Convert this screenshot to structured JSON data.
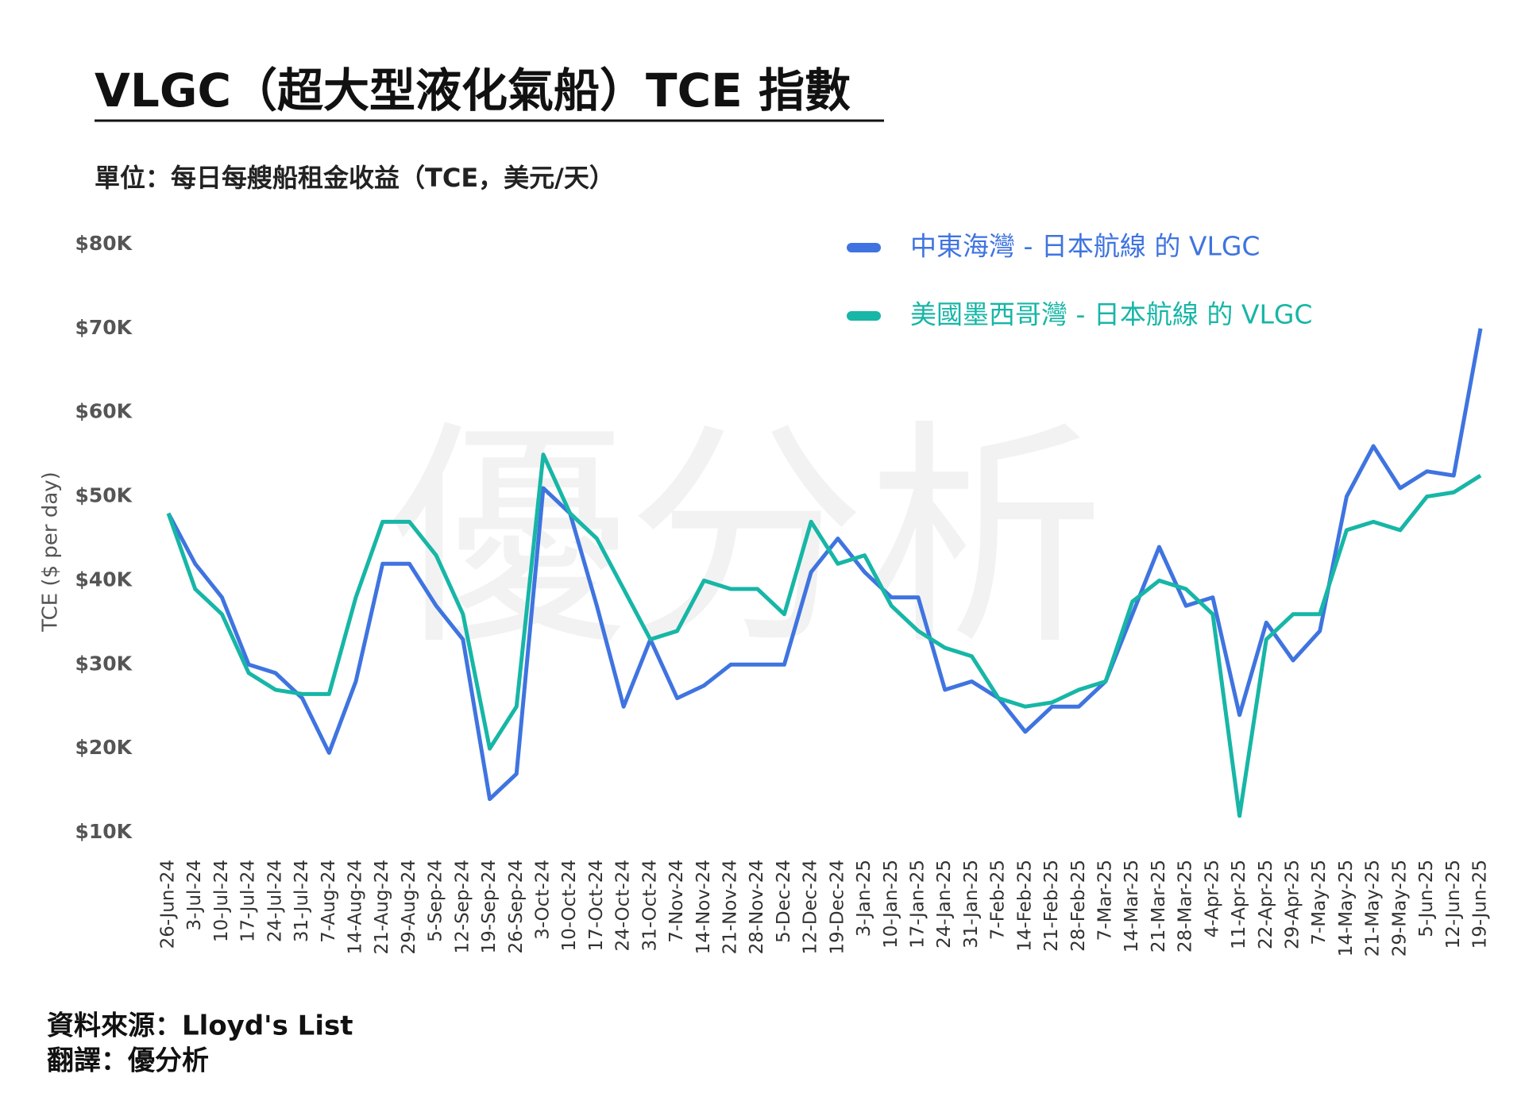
{
  "chart_data": {
    "type": "line",
    "title": "VLGC（超大型液化氣船）TCE 指數",
    "subtitle": "單位：每日每艘船租金收益（TCE，美元/天）",
    "y_label": "TCE ($ per day)",
    "watermark": "優分析",
    "notes": [
      "資料來源：Lloyd's List",
      "翻譯：優分析"
    ],
    "categories": [
      "26-Jun-24",
      "3-Jul-24",
      "10-Jul-24",
      "17-Jul-24",
      "24-Jul-24",
      "31-Jul-24",
      "7-Aug-24",
      "14-Aug-24",
      "21-Aug-24",
      "29-Aug-24",
      "5-Sep-24",
      "12-Sep-24",
      "19-Sep-24",
      "26-Sep-24",
      "3-Oct-24",
      "10-Oct-24",
      "17-Oct-24",
      "24-Oct-24",
      "31-Oct-24",
      "7-Nov-24",
      "14-Nov-24",
      "21-Nov-24",
      "28-Nov-24",
      "5-Dec-24",
      "12-Dec-24",
      "19-Dec-24",
      "3-Jan-25",
      "10-Jan-25",
      "17-Jan-25",
      "24-Jan-25",
      "31-Jan-25",
      "7-Feb-25",
      "14-Feb-25",
      "21-Feb-25",
      "28-Feb-25",
      "7-Mar-25",
      "14-Mar-25",
      "21-Mar-25",
      "28-Mar-25",
      "4-Apr-25",
      "11-Apr-25",
      "22-Apr-25",
      "29-Apr-25",
      "7-May-25",
      "14-May-25",
      "21-May-25",
      "29-May-25",
      "5-Jun-25",
      "12-Jun-25",
      "19-Jun-25"
    ],
    "series": [
      {
        "name": "中東海灣 - 日本航線 的 VLGC",
        "color": "#3f74e0",
        "values": [
          48000,
          42000,
          38000,
          30000,
          29000,
          26000,
          19500,
          28000,
          42000,
          42000,
          37000,
          33000,
          14000,
          17000,
          51000,
          48000,
          37000,
          25000,
          33000,
          26000,
          27500,
          30000,
          30000,
          30000,
          41000,
          45000,
          41000,
          38000,
          38000,
          27000,
          28000,
          26000,
          22000,
          25000,
          25000,
          28000,
          36000,
          44000,
          37000,
          38000,
          24000,
          35000,
          30500,
          34000,
          50000,
          56000,
          51000,
          53000,
          52500,
          70000
        ]
      },
      {
        "name": "美國墨西哥灣 - 日本航線 的 VLGC",
        "color": "#17b6a6",
        "values": [
          48000,
          39000,
          36000,
          29000,
          27000,
          26500,
          26500,
          38000,
          47000,
          47000,
          43000,
          36000,
          20000,
          25000,
          55000,
          48000,
          45000,
          39000,
          33000,
          34000,
          40000,
          39000,
          39000,
          36000,
          47000,
          42000,
          43000,
          37000,
          34000,
          32000,
          31000,
          26000,
          25000,
          25500,
          27000,
          28000,
          37500,
          40000,
          39000,
          36000,
          12000,
          33000,
          36000,
          36000,
          46000,
          47000,
          46000,
          50000,
          50500,
          52500
        ]
      }
    ],
    "ylim": [
      10000,
      80000
    ],
    "yticks": [
      {
        "value": 10000,
        "label": "$10K"
      },
      {
        "value": 20000,
        "label": "$20K"
      },
      {
        "value": 30000,
        "label": "$30K"
      },
      {
        "value": 40000,
        "label": "$40K"
      },
      {
        "value": 50000,
        "label": "$50K"
      },
      {
        "value": 60000,
        "label": "$60K"
      },
      {
        "value": 70000,
        "label": "$70K"
      },
      {
        "value": 80000,
        "label": "$80K"
      }
    ],
    "grid": false
  }
}
